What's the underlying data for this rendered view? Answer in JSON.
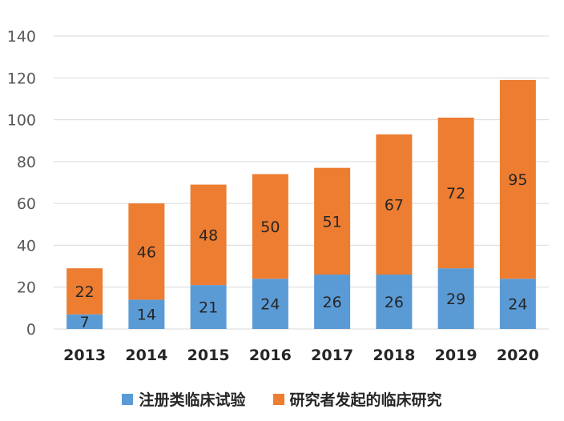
{
  "colors": {
    "series1": "#5b9bd5",
    "series2": "#ed7d31",
    "grid": "#d9d9d9",
    "tick_text": "#595959",
    "label_text": "#262626"
  },
  "chart_data": {
    "type": "bar",
    "stacked": true,
    "categories": [
      "2013",
      "2014",
      "2015",
      "2016",
      "2017",
      "2018",
      "2019",
      "2020"
    ],
    "series": [
      {
        "name": "注册类临床试验",
        "values": [
          7,
          14,
          21,
          24,
          26,
          26,
          29,
          24
        ]
      },
      {
        "name": "研究者发起的临床研究",
        "values": [
          22,
          46,
          48,
          50,
          51,
          67,
          72,
          95
        ]
      }
    ],
    "ylim": [
      0,
      140
    ],
    "yticks": [
      0,
      20,
      40,
      60,
      80,
      100,
      120,
      140
    ],
    "grid": true,
    "legend_position": "bottom",
    "data_labels": true,
    "title": "",
    "xlabel": "",
    "ylabel": ""
  }
}
